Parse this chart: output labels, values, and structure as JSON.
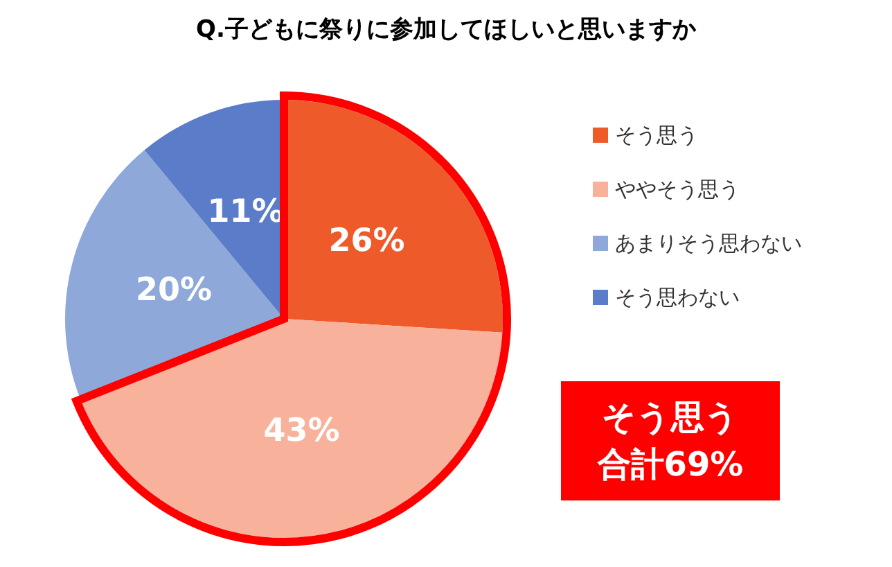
{
  "chart_data": {
    "type": "pie",
    "title": "Q.子どもに祭りに参加してほしいと思いますか",
    "categories": [
      "そう思う",
      "ややそう思う",
      "あまりそう思わない",
      "そう思わない"
    ],
    "values": [
      26,
      43,
      20,
      11
    ],
    "colors": [
      "#ee5a2a",
      "#f8b29c",
      "#8ea8da",
      "#5b7cc8"
    ],
    "value_labels": [
      "26%",
      "43%",
      "20%",
      "11%"
    ],
    "legend": "right",
    "annotations": [
      "そう思う",
      "合計69%"
    ]
  }
}
